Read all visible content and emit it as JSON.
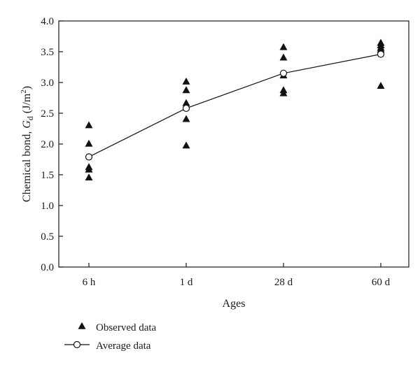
{
  "chart_data": {
    "type": "scatter",
    "xlabel": "Ages",
    "ylabel": {
      "prefix": "Chemical bond, ",
      "symbol": "G",
      "subscript": "d",
      "unit_open": " (J/m",
      "unit_sup": "2",
      "unit_close": ")"
    },
    "categories": [
      "6 h",
      "1 d",
      "28 d",
      "60 d"
    ],
    "ylim": [
      0,
      4.0
    ],
    "yticks": [
      "0.0",
      "0.5",
      "1.0",
      "1.5",
      "2.0",
      "2.5",
      "3.0",
      "3.5",
      "4.0"
    ],
    "grid": false,
    "legend_position": "bottom-left",
    "series": [
      {
        "name": "Observed data",
        "marker": "filled-triangle",
        "color": "#111111",
        "points": [
          {
            "x": "6 h",
            "y": 2.3
          },
          {
            "x": "6 h",
            "y": 2.0
          },
          {
            "x": "6 h",
            "y": 1.62
          },
          {
            "x": "6 h",
            "y": 1.58
          },
          {
            "x": "6 h",
            "y": 1.45
          },
          {
            "x": "1 d",
            "y": 3.01
          },
          {
            "x": "1 d",
            "y": 2.87
          },
          {
            "x": "1 d",
            "y": 2.66
          },
          {
            "x": "1 d",
            "y": 2.4
          },
          {
            "x": "1 d",
            "y": 1.97
          },
          {
            "x": "28 d",
            "y": 3.57
          },
          {
            "x": "28 d",
            "y": 3.4
          },
          {
            "x": "28 d",
            "y": 3.11
          },
          {
            "x": "28 d",
            "y": 2.87
          },
          {
            "x": "28 d",
            "y": 2.82
          },
          {
            "x": "60 d",
            "y": 3.64
          },
          {
            "x": "60 d",
            "y": 3.6
          },
          {
            "x": "60 d",
            "y": 3.56
          },
          {
            "x": "60 d",
            "y": 3.53
          },
          {
            "x": "60 d",
            "y": 2.94
          }
        ]
      },
      {
        "name": "Average data",
        "marker": "open-circle-line",
        "color": "#111111",
        "points": [
          {
            "x": "6 h",
            "y": 1.79
          },
          {
            "x": "1 d",
            "y": 2.58
          },
          {
            "x": "28 d",
            "y": 3.15
          },
          {
            "x": "60 d",
            "y": 3.46
          }
        ]
      }
    ]
  }
}
